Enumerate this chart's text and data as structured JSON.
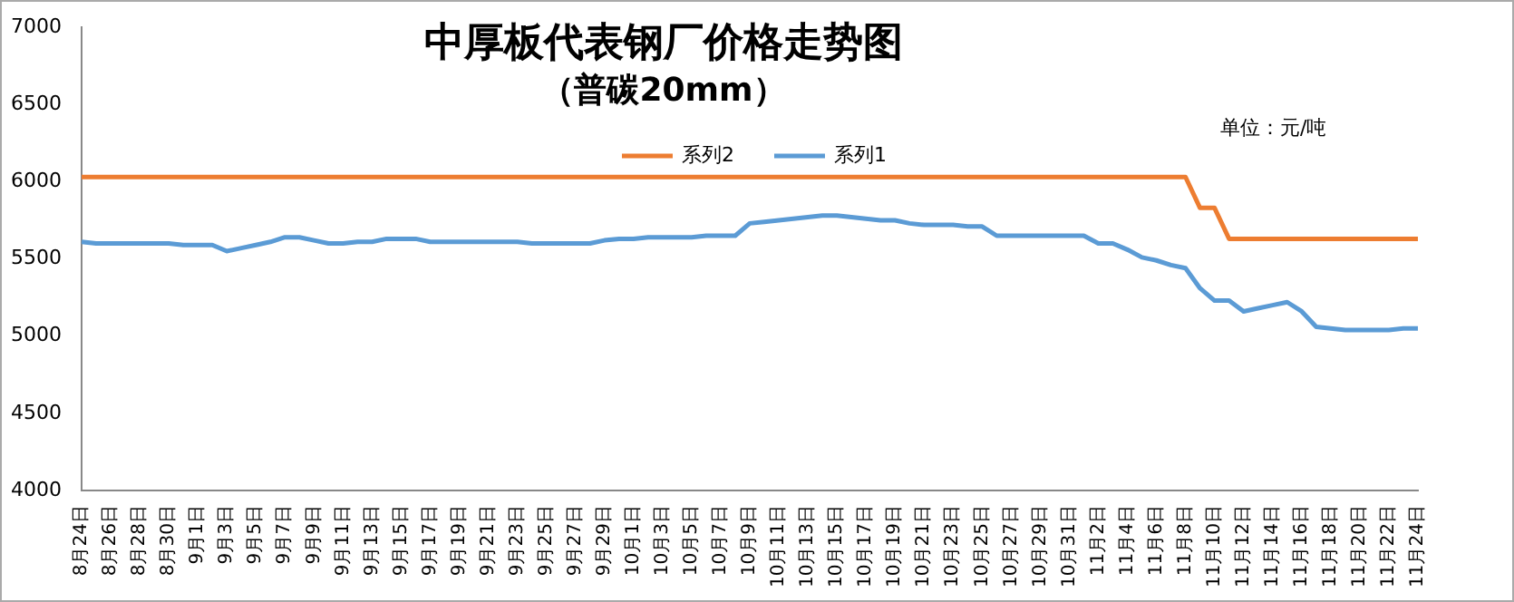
{
  "chart_data": {
    "type": "line",
    "title": "中厚板代表钢厂价格走势图",
    "subtitle": "（普碳20mm）",
    "annotations": [
      "单位：元/吨"
    ],
    "categories": [
      "8月24日",
      null,
      "8月26日",
      null,
      "8月28日",
      null,
      "8月30日",
      null,
      "9月1日",
      null,
      "9月3日",
      null,
      "9月5日",
      null,
      "9月7日",
      null,
      "9月9日",
      null,
      "9月11日",
      null,
      "9月13日",
      null,
      "9月15日",
      null,
      "9月17日",
      null,
      "9月19日",
      null,
      "9月21日",
      null,
      "9月23日",
      null,
      "9月25日",
      null,
      "9月27日",
      null,
      "9月29日",
      null,
      "10月1日",
      null,
      "10月3日",
      null,
      "10月5日",
      null,
      "10月7日",
      null,
      "10月9日",
      null,
      "10月11日",
      null,
      "10月13日",
      null,
      "10月15日",
      null,
      "10月17日",
      null,
      "10月19日",
      null,
      "10月21日",
      null,
      "10月23日",
      null,
      "10月25日",
      null,
      "10月27日",
      null,
      "10月29日",
      null,
      "10月31日",
      null,
      "11月2日",
      null,
      "11月4日",
      null,
      "11月6日",
      null,
      "11月8日",
      null,
      "11月10日",
      null,
      "11月12日",
      null,
      "11月14日",
      null,
      "11月16日",
      null,
      "11月18日",
      null,
      "11月20日",
      null,
      "11月22日",
      null,
      "11月24日"
    ],
    "series": [
      {
        "name": "系列2",
        "color": "#ed7d31",
        "values": [
          6030,
          6030,
          6030,
          6030,
          6030,
          6030,
          6030,
          6030,
          6030,
          6030,
          6030,
          6030,
          6030,
          6030,
          6030,
          6030,
          6030,
          6030,
          6030,
          6030,
          6030,
          6030,
          6030,
          6030,
          6030,
          6030,
          6030,
          6030,
          6030,
          6030,
          6030,
          6030,
          6030,
          6030,
          6030,
          6030,
          6030,
          6030,
          6030,
          6030,
          6030,
          6030,
          6030,
          6030,
          6030,
          6030,
          6030,
          6030,
          6030,
          6030,
          6030,
          6030,
          6030,
          6030,
          6030,
          6030,
          6030,
          6030,
          6030,
          6030,
          6030,
          6030,
          6030,
          6030,
          6030,
          6030,
          6030,
          6030,
          6030,
          6030,
          6030,
          6030,
          6030,
          6030,
          6030,
          6030,
          6030,
          5830,
          5830,
          5630,
          5630,
          5630,
          5630,
          5630,
          5630,
          5630,
          5630,
          5630,
          5630,
          5630,
          5630,
          5630,
          5630
        ]
      },
      {
        "name": "系列1",
        "color": "#5b9bd5",
        "values": [
          5610,
          5600,
          5600,
          5600,
          5600,
          5600,
          5600,
          5590,
          5590,
          5590,
          5550,
          5570,
          5590,
          5610,
          5640,
          5640,
          5620,
          5600,
          5600,
          5610,
          5610,
          5630,
          5630,
          5630,
          5610,
          5610,
          5610,
          5610,
          5610,
          5610,
          5610,
          5600,
          5600,
          5600,
          5600,
          5600,
          5620,
          5630,
          5630,
          5640,
          5640,
          5640,
          5640,
          5650,
          5650,
          5650,
          5730,
          5740,
          5750,
          5760,
          5770,
          5780,
          5780,
          5770,
          5760,
          5750,
          5750,
          5730,
          5720,
          5720,
          5720,
          5710,
          5710,
          5650,
          5650,
          5650,
          5650,
          5650,
          5650,
          5650,
          5600,
          5600,
          5560,
          5510,
          5490,
          5460,
          5440,
          5310,
          5230,
          5230,
          5160,
          5180,
          5200,
          5220,
          5160,
          5060,
          5050,
          5040,
          5040,
          5040,
          5040,
          5050,
          5050
        ]
      }
    ],
    "ylim": [
      4000,
      7000
    ],
    "yticks": [
      4000,
      4500,
      5000,
      5500,
      6000,
      6500,
      7000
    ],
    "grid": false,
    "legend": "top",
    "marker": "none",
    "line_style": "solid"
  }
}
